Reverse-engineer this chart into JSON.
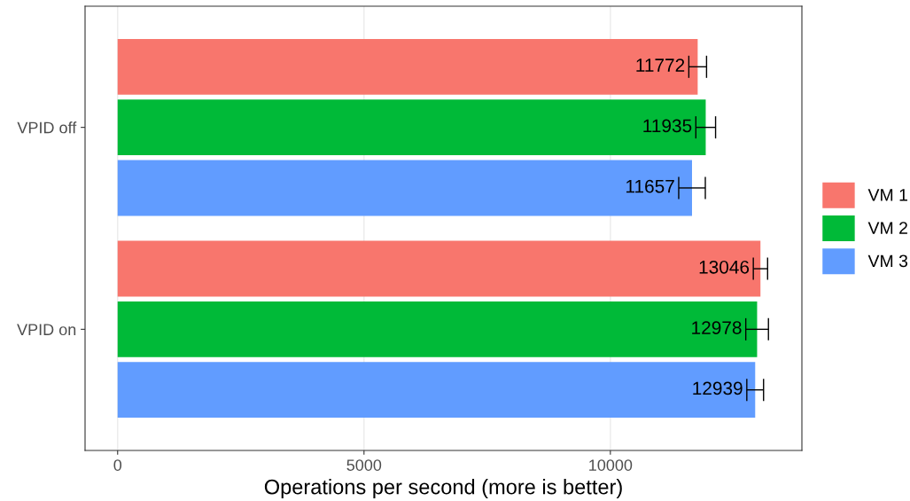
{
  "chart_data": {
    "type": "bar",
    "orientation": "horizontal",
    "xlabel": "Operations per second (more is better)",
    "categories": [
      "VPID off",
      "VPID on"
    ],
    "series": [
      {
        "name": "VM 1",
        "color": "#f8766d",
        "values": [
          11772,
          13046
        ],
        "errors": [
          180,
          145
        ]
      },
      {
        "name": "VM 2",
        "color": "#00ba38",
        "values": [
          11935,
          12978
        ],
        "errors": [
          200,
          230
        ]
      },
      {
        "name": "VM 3",
        "color": "#619cff",
        "values": [
          11657,
          12939
        ],
        "errors": [
          270,
          170
        ]
      }
    ],
    "xlim": [
      -661,
      13887
    ],
    "xticks": [
      0,
      5000,
      10000
    ],
    "grid": "x",
    "legend": "right",
    "data_labels": true
  }
}
